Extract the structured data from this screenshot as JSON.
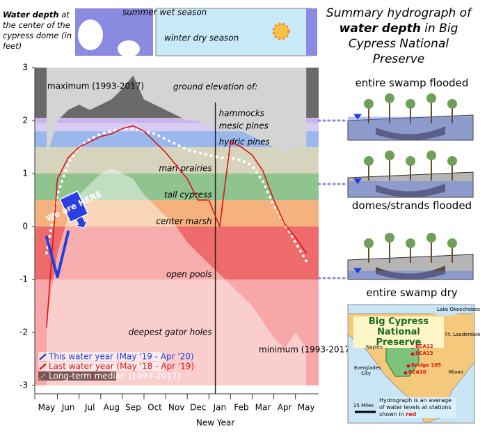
{
  "header": {
    "depth_label_bold": "Water depth",
    "depth_label_rest": "at the center of the cypress dome (in feet)",
    "summer": "summer wet season",
    "winter": "winter dry season"
  },
  "title_parts": [
    "Summary hydrograph of ",
    "water depth",
    " in Big Cypress National Preserve"
  ],
  "stages": [
    "entire swamp flooded",
    "domes/strands flooded",
    "entire swamp dry"
  ],
  "map": {
    "title": "Big Cypress National Preserve",
    "lake": "Lake Okeechobee",
    "cities": [
      "Naples",
      "Everglades City",
      "Ft. Lauderdale",
      "Miami"
    ],
    "stations": [
      "BCA12",
      "BCA13",
      "Bridge 105",
      "BCA10"
    ],
    "scale": "25 Miles",
    "note": "Hydrograph is an average of water levels at stations shown in",
    "note_highlight": "red"
  },
  "chart_data": {
    "type": "line",
    "categories": [
      "May",
      null,
      "Jun",
      null,
      "Jul",
      null,
      "Aug",
      null,
      "Sep",
      null,
      "Oct",
      null,
      "Nov",
      null,
      "Dec",
      null,
      "Jan",
      null,
      "Feb",
      null,
      "Mar",
      null,
      "Apr",
      null,
      "May"
    ],
    "x_label": "New Year",
    "ylim": [
      -3,
      3
    ],
    "yticks": [
      3,
      2,
      1,
      0,
      -1,
      -2,
      -3
    ],
    "series": [
      {
        "name": "This water year (May '19 - Apr '20)",
        "color": "#1f3fe0",
        "style": "solid",
        "values": [
          -0.2,
          -0.95,
          -0.1,
          null,
          null,
          null,
          null,
          null,
          null,
          null,
          null,
          null,
          null,
          null,
          null,
          null,
          null,
          null,
          null,
          null,
          null,
          null,
          null,
          null,
          null
        ]
      },
      {
        "name": "Last water year (May '18 - Apr '19)",
        "color": "#e01010",
        "style": "solid",
        "values": [
          -1.9,
          0.9,
          1.3,
          1.5,
          1.6,
          1.7,
          1.75,
          1.85,
          1.9,
          1.8,
          1.6,
          1.4,
          1.15,
          0.9,
          0.5,
          0.5,
          0.0,
          1.6,
          1.5,
          1.35,
          1.05,
          0.5,
          0.05,
          -0.2,
          -0.5
        ]
      },
      {
        "name": "Long-term median (1993-2017)",
        "color": "#ffffff",
        "style": "dotted",
        "values": [
          -0.5,
          0.6,
          1.2,
          1.5,
          1.65,
          1.75,
          1.8,
          1.85,
          1.85,
          1.8,
          1.75,
          1.65,
          1.55,
          1.45,
          1.4,
          1.35,
          1.3,
          1.3,
          1.25,
          1.15,
          0.85,
          0.4,
          0.05,
          -0.3,
          -0.65
        ]
      }
    ],
    "max_series": {
      "name": "maximum (1993-2017)",
      "color": "#d4d4d4",
      "values": [
        1.3,
        2.0,
        2.2,
        2.3,
        2.2,
        2.3,
        2.4,
        2.6,
        2.85,
        2.4,
        2.3,
        2.2,
        2.1,
        2.0,
        2.0,
        1.9,
        1.8,
        1.8,
        1.8,
        1.7,
        1.6,
        1.5,
        1.4,
        1.5,
        1.5
      ]
    },
    "min_series": {
      "name": "minimum (1993-2017)",
      "color": "#ffffff",
      "values": [
        -1.8,
        -0.5,
        0.2,
        0.6,
        0.8,
        1.0,
        1.1,
        1.0,
        0.9,
        0.6,
        0.4,
        0.2,
        0.0,
        -0.3,
        -0.5,
        -0.7,
        -0.9,
        -1.1,
        -1.3,
        -1.5,
        -1.8,
        -2.1,
        -2.3,
        -2.0,
        -2.3
      ]
    },
    "elevation_title": "ground elevation of:",
    "elevations": [
      {
        "label": "hammocks",
        "value": 2.05,
        "color": "#c9b4ec"
      },
      {
        "label": "mesic pines",
        "value": 1.95,
        "color": "#d9ccf2"
      },
      {
        "label": "hydric pines",
        "value": 1.8,
        "color": "#9ab8ee"
      },
      {
        "label": "marl prairies",
        "value": 1.5,
        "color": "#d6d4bd"
      },
      {
        "label": "tall cypress",
        "value": 1.0,
        "color": "#8fc48f"
      },
      {
        "label": "center marsh",
        "value": 0.5,
        "color": "#f5b27f"
      },
      {
        "label": "open pools",
        "value": 0,
        "color": "#ef6b6b"
      },
      {
        "label": "deepest gator holes",
        "value": -1,
        "color": "#f7a7a7"
      }
    ],
    "top_color": "#6a6a6a",
    "annotation": "We are HERE"
  }
}
